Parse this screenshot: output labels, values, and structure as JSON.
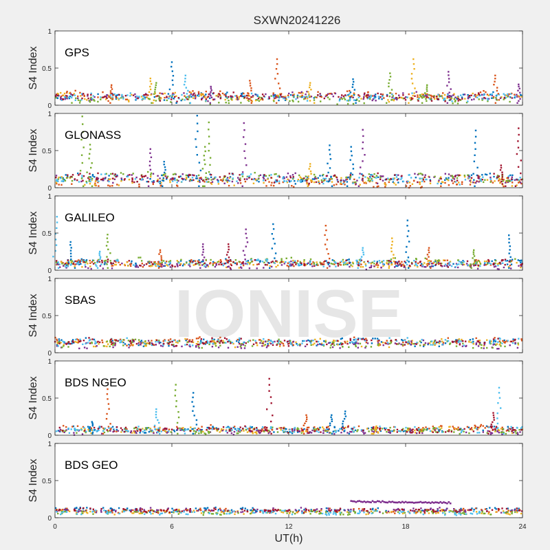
{
  "figure": {
    "title": "SXWN20241226",
    "watermark": "IONISE",
    "xlabel": "UT(h)",
    "background_color": "#f0f0f0",
    "axes_color": "#ffffff"
  },
  "series_colors": [
    "#0072bd",
    "#d95319",
    "#edb120",
    "#7e2f8e",
    "#77ac30",
    "#4dbeee",
    "#a2142f"
  ],
  "chart_data": [
    {
      "type": "scatter",
      "panel_label": "GPS",
      "ylabel": "S4 Index",
      "xlim": [
        0,
        24
      ],
      "ylim": [
        0,
        1
      ],
      "xticks": [
        0,
        6,
        12,
        18,
        24
      ],
      "yticks": [
        0,
        0.5,
        1
      ],
      "baseline": [
        0.03,
        0.16
      ],
      "spikes": [
        {
          "x": 2.9,
          "y": 0.27,
          "c": 1
        },
        {
          "x": 4.9,
          "y": 0.36,
          "c": 2
        },
        {
          "x": 5.2,
          "y": 0.3,
          "c": 4
        },
        {
          "x": 6.0,
          "y": 0.58,
          "c": 0
        },
        {
          "x": 6.7,
          "y": 0.4,
          "c": 5
        },
        {
          "x": 8.0,
          "y": 0.25,
          "c": 3
        },
        {
          "x": 10.0,
          "y": 0.33,
          "c": 1
        },
        {
          "x": 11.4,
          "y": 0.62,
          "c": 1
        },
        {
          "x": 13.1,
          "y": 0.3,
          "c": 2
        },
        {
          "x": 15.3,
          "y": 0.35,
          "c": 0
        },
        {
          "x": 17.2,
          "y": 0.43,
          "c": 4
        },
        {
          "x": 18.4,
          "y": 0.62,
          "c": 2
        },
        {
          "x": 19.1,
          "y": 0.27,
          "c": 4
        },
        {
          "x": 20.2,
          "y": 0.45,
          "c": 3
        },
        {
          "x": 22.6,
          "y": 0.4,
          "c": 1
        },
        {
          "x": 23.8,
          "y": 0.28,
          "c": 3
        }
      ]
    },
    {
      "type": "scatter",
      "panel_label": "GLONASS",
      "ylabel": "S4 Index",
      "xlim": [
        0,
        24
      ],
      "ylim": [
        0,
        1
      ],
      "xticks": [
        0,
        6,
        12,
        18,
        24
      ],
      "yticks": [
        0,
        0.5,
        1
      ],
      "baseline": [
        0.02,
        0.17
      ],
      "spikes": [
        {
          "x": 1.4,
          "y": 0.96,
          "c": 4
        },
        {
          "x": 1.8,
          "y": 0.58,
          "c": 4
        },
        {
          "x": 4.9,
          "y": 0.52,
          "c": 3
        },
        {
          "x": 5.6,
          "y": 0.35,
          "c": 0
        },
        {
          "x": 7.3,
          "y": 0.97,
          "c": 0
        },
        {
          "x": 7.9,
          "y": 0.88,
          "c": 4
        },
        {
          "x": 7.7,
          "y": 0.55,
          "c": 4
        },
        {
          "x": 9.7,
          "y": 0.87,
          "c": 3
        },
        {
          "x": 13.1,
          "y": 0.32,
          "c": 2
        },
        {
          "x": 14.1,
          "y": 0.57,
          "c": 0
        },
        {
          "x": 15.2,
          "y": 0.55,
          "c": 0
        },
        {
          "x": 15.8,
          "y": 0.78,
          "c": 3
        },
        {
          "x": 21.6,
          "y": 0.77,
          "c": 0
        },
        {
          "x": 22.9,
          "y": 0.3,
          "c": 6
        },
        {
          "x": 23.8,
          "y": 0.8,
          "c": 6
        }
      ]
    },
    {
      "type": "scatter",
      "panel_label": "GALILEO",
      "ylabel": "S4 Index",
      "xlim": [
        0,
        24
      ],
      "ylim": [
        0,
        1
      ],
      "xticks": [
        0,
        6,
        12,
        18,
        24
      ],
      "yticks": [
        0,
        0.5,
        1
      ],
      "baseline": [
        0.03,
        0.14
      ],
      "spikes": [
        {
          "x": 0.1,
          "y": 0.72,
          "c": 5
        },
        {
          "x": 0.8,
          "y": 0.38,
          "c": 0
        },
        {
          "x": 2.3,
          "y": 0.25,
          "c": 5
        },
        {
          "x": 2.7,
          "y": 0.48,
          "c": 4
        },
        {
          "x": 5.4,
          "y": 0.27,
          "c": 1
        },
        {
          "x": 7.6,
          "y": 0.35,
          "c": 3
        },
        {
          "x": 8.9,
          "y": 0.35,
          "c": 6
        },
        {
          "x": 9.8,
          "y": 0.55,
          "c": 3
        },
        {
          "x": 11.2,
          "y": 0.62,
          "c": 0
        },
        {
          "x": 13.9,
          "y": 0.6,
          "c": 1
        },
        {
          "x": 15.8,
          "y": 0.3,
          "c": 5
        },
        {
          "x": 17.3,
          "y": 0.43,
          "c": 2
        },
        {
          "x": 18.1,
          "y": 0.67,
          "c": 0
        },
        {
          "x": 19.2,
          "y": 0.3,
          "c": 1
        },
        {
          "x": 21.5,
          "y": 0.27,
          "c": 4
        },
        {
          "x": 23.3,
          "y": 0.47,
          "c": 0
        }
      ]
    },
    {
      "type": "scatter",
      "panel_label": "SBAS",
      "ylabel": "S4 Index",
      "xlim": [
        0,
        24
      ],
      "ylim": [
        0,
        1
      ],
      "xticks": [
        0,
        6,
        12,
        18,
        24
      ],
      "yticks": [
        0,
        0.5,
        1
      ],
      "baseline": [
        0.06,
        0.18
      ],
      "spikes": []
    },
    {
      "type": "scatter",
      "panel_label": "BDS NGEO",
      "ylabel": "S4 Index",
      "xlim": [
        0,
        24
      ],
      "ylim": [
        0,
        1
      ],
      "xticks": [
        0,
        6,
        12,
        18,
        24
      ],
      "yticks": [
        0,
        0.5,
        1
      ],
      "baseline": [
        0.02,
        0.12
      ],
      "spikes": [
        {
          "x": 1.9,
          "y": 0.18,
          "c": 0
        },
        {
          "x": 2.7,
          "y": 0.62,
          "c": 1
        },
        {
          "x": 5.2,
          "y": 0.35,
          "c": 5
        },
        {
          "x": 6.2,
          "y": 0.68,
          "c": 4
        },
        {
          "x": 7.1,
          "y": 0.57,
          "c": 0
        },
        {
          "x": 11.0,
          "y": 0.76,
          "c": 6
        },
        {
          "x": 12.9,
          "y": 0.27,
          "c": 1
        },
        {
          "x": 14.2,
          "y": 0.27,
          "c": 0
        },
        {
          "x": 14.9,
          "y": 0.32,
          "c": 0
        },
        {
          "x": 22.5,
          "y": 0.3,
          "c": 6
        },
        {
          "x": 22.8,
          "y": 0.64,
          "c": 5
        },
        {
          "x": 16.5,
          "y": 0.12,
          "c": 2
        }
      ]
    },
    {
      "type": "scatter",
      "panel_label": "BDS GEO",
      "ylabel": "S4 Index",
      "xlim": [
        0,
        24
      ],
      "ylim": [
        0,
        1
      ],
      "xticks": [
        0,
        6,
        12,
        18,
        24
      ],
      "yticks": [
        0,
        0.5,
        1
      ],
      "baseline": [
        0.05,
        0.12
      ],
      "bands": [
        {
          "x0": 15.2,
          "x1": 20.3,
          "y0": 0.22,
          "y1": 0.2,
          "c": 3
        }
      ],
      "spikes": []
    }
  ]
}
